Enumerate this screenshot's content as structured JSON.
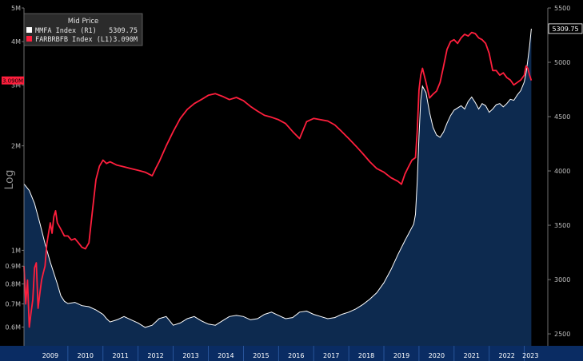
{
  "chart_data": {
    "type": "line",
    "title": "Mid Price",
    "left_axis": {
      "scale": "log",
      "label": "Log",
      "range": [
        0.53,
        5.0
      ],
      "tick_values": [
        0.6,
        0.7,
        0.8,
        0.9,
        1,
        2,
        3,
        4,
        5
      ],
      "tick_labels": [
        "0.6M",
        "0.7M",
        "0.8M",
        "0.9M",
        "1M",
        "2M",
        "3M",
        "4M",
        "5M"
      ]
    },
    "right_axis": {
      "scale": "linear",
      "range": [
        2390,
        5500
      ],
      "tick_values": [
        2500,
        3000,
        3500,
        4000,
        4500,
        5000,
        5500
      ],
      "tick_labels": [
        "2500",
        "3000",
        "3500",
        "4000",
        "4500",
        "5000",
        "5500"
      ]
    },
    "x_axis": {
      "range": [
        2008.75,
        2023.35
      ],
      "year_labels": [
        "2009",
        "2010",
        "2011",
        "2012",
        "2013",
        "2014",
        "2015",
        "2016",
        "2017",
        "2018",
        "2019",
        "2020",
        "2021",
        "2022",
        "2023"
      ]
    },
    "grid": false,
    "legend_position": "top-left",
    "series": [
      {
        "name": "MMFA Index  (R1)",
        "legend_value": "5309.75",
        "axis": "right",
        "style": "area",
        "color": "#ffffff",
        "fill": "#0d2a4f",
        "last_value_label": "5309.75",
        "points": [
          [
            2008.75,
            3880
          ],
          [
            2008.9,
            3820
          ],
          [
            2009.05,
            3700
          ],
          [
            2009.2,
            3520
          ],
          [
            2009.35,
            3330
          ],
          [
            2009.5,
            3160
          ],
          [
            2009.6,
            3060
          ],
          [
            2009.7,
            2960
          ],
          [
            2009.8,
            2850
          ],
          [
            2009.9,
            2800
          ],
          [
            2010.0,
            2780
          ],
          [
            2010.2,
            2790
          ],
          [
            2010.4,
            2760
          ],
          [
            2010.6,
            2750
          ],
          [
            2010.8,
            2720
          ],
          [
            2011.0,
            2680
          ],
          [
            2011.1,
            2640
          ],
          [
            2011.2,
            2610
          ],
          [
            2011.4,
            2630
          ],
          [
            2011.6,
            2660
          ],
          [
            2011.8,
            2630
          ],
          [
            2012.0,
            2600
          ],
          [
            2012.2,
            2560
          ],
          [
            2012.4,
            2580
          ],
          [
            2012.6,
            2640
          ],
          [
            2012.8,
            2660
          ],
          [
            2012.9,
            2620
          ],
          [
            2013.0,
            2580
          ],
          [
            2013.2,
            2600
          ],
          [
            2013.4,
            2640
          ],
          [
            2013.6,
            2660
          ],
          [
            2013.8,
            2620
          ],
          [
            2014.0,
            2590
          ],
          [
            2014.2,
            2580
          ],
          [
            2014.4,
            2620
          ],
          [
            2014.6,
            2660
          ],
          [
            2014.8,
            2670
          ],
          [
            2015.0,
            2660
          ],
          [
            2015.2,
            2630
          ],
          [
            2015.4,
            2640
          ],
          [
            2015.6,
            2680
          ],
          [
            2015.8,
            2700
          ],
          [
            2016.0,
            2670
          ],
          [
            2016.2,
            2640
          ],
          [
            2016.4,
            2650
          ],
          [
            2016.6,
            2700
          ],
          [
            2016.8,
            2710
          ],
          [
            2017.0,
            2680
          ],
          [
            2017.2,
            2660
          ],
          [
            2017.4,
            2640
          ],
          [
            2017.6,
            2650
          ],
          [
            2017.8,
            2680
          ],
          [
            2018.0,
            2700
          ],
          [
            2018.2,
            2730
          ],
          [
            2018.4,
            2770
          ],
          [
            2018.6,
            2820
          ],
          [
            2018.8,
            2880
          ],
          [
            2019.0,
            2970
          ],
          [
            2019.2,
            3090
          ],
          [
            2019.4,
            3230
          ],
          [
            2019.6,
            3360
          ],
          [
            2019.7,
            3420
          ],
          [
            2019.8,
            3480
          ],
          [
            2019.85,
            3510
          ],
          [
            2019.9,
            3600
          ],
          [
            2019.95,
            3900
          ],
          [
            2020.0,
            4320
          ],
          [
            2020.05,
            4650
          ],
          [
            2020.1,
            4780
          ],
          [
            2020.2,
            4720
          ],
          [
            2020.3,
            4540
          ],
          [
            2020.4,
            4400
          ],
          [
            2020.5,
            4330
          ],
          [
            2020.6,
            4310
          ],
          [
            2020.7,
            4360
          ],
          [
            2020.8,
            4440
          ],
          [
            2020.9,
            4510
          ],
          [
            2021.0,
            4560
          ],
          [
            2021.2,
            4600
          ],
          [
            2021.3,
            4570
          ],
          [
            2021.4,
            4640
          ],
          [
            2021.5,
            4680
          ],
          [
            2021.6,
            4630
          ],
          [
            2021.7,
            4570
          ],
          [
            2021.8,
            4620
          ],
          [
            2021.9,
            4600
          ],
          [
            2022.0,
            4540
          ],
          [
            2022.1,
            4570
          ],
          [
            2022.2,
            4610
          ],
          [
            2022.3,
            4620
          ],
          [
            2022.4,
            4590
          ],
          [
            2022.5,
            4620
          ],
          [
            2022.6,
            4660
          ],
          [
            2022.7,
            4650
          ],
          [
            2022.8,
            4700
          ],
          [
            2022.9,
            4740
          ],
          [
            2023.0,
            4820
          ],
          [
            2023.05,
            4900
          ],
          [
            2023.1,
            5020
          ],
          [
            2023.15,
            5150
          ],
          [
            2023.2,
            5309.75
          ]
        ]
      },
      {
        "name": "FARBRBFB Index  (L1)",
        "legend_value": "3.090M",
        "axis": "left",
        "style": "line",
        "color": "#ff1f3d",
        "last_value_label": "3.090M",
        "points": [
          [
            2008.75,
            0.9
          ],
          [
            2008.8,
            0.7
          ],
          [
            2008.85,
            0.82
          ],
          [
            2008.9,
            0.6
          ],
          [
            2008.95,
            0.66
          ],
          [
            2009.0,
            0.72
          ],
          [
            2009.05,
            0.89
          ],
          [
            2009.1,
            0.92
          ],
          [
            2009.15,
            0.68
          ],
          [
            2009.2,
            0.75
          ],
          [
            2009.25,
            0.82
          ],
          [
            2009.3,
            0.86
          ],
          [
            2009.35,
            0.9
          ],
          [
            2009.4,
            1.04
          ],
          [
            2009.45,
            1.12
          ],
          [
            2009.5,
            1.2
          ],
          [
            2009.55,
            1.12
          ],
          [
            2009.6,
            1.25
          ],
          [
            2009.65,
            1.3
          ],
          [
            2009.7,
            1.2
          ],
          [
            2009.8,
            1.15
          ],
          [
            2009.9,
            1.1
          ],
          [
            2010.0,
            1.1
          ],
          [
            2010.1,
            1.07
          ],
          [
            2010.2,
            1.08
          ],
          [
            2010.3,
            1.05
          ],
          [
            2010.4,
            1.02
          ],
          [
            2010.5,
            1.01
          ],
          [
            2010.6,
            1.05
          ],
          [
            2010.7,
            1.3
          ],
          [
            2010.8,
            1.6
          ],
          [
            2010.9,
            1.75
          ],
          [
            2011.0,
            1.82
          ],
          [
            2011.1,
            1.78
          ],
          [
            2011.2,
            1.8
          ],
          [
            2011.4,
            1.76
          ],
          [
            2011.6,
            1.74
          ],
          [
            2011.8,
            1.72
          ],
          [
            2012.0,
            1.7
          ],
          [
            2012.2,
            1.68
          ],
          [
            2012.4,
            1.64
          ],
          [
            2012.5,
            1.72
          ],
          [
            2012.6,
            1.8
          ],
          [
            2012.8,
            2.0
          ],
          [
            2013.0,
            2.2
          ],
          [
            2013.2,
            2.4
          ],
          [
            2013.4,
            2.55
          ],
          [
            2013.6,
            2.65
          ],
          [
            2013.8,
            2.72
          ],
          [
            2014.0,
            2.8
          ],
          [
            2014.2,
            2.83
          ],
          [
            2014.4,
            2.78
          ],
          [
            2014.6,
            2.72
          ],
          [
            2014.8,
            2.76
          ],
          [
            2015.0,
            2.7
          ],
          [
            2015.2,
            2.6
          ],
          [
            2015.4,
            2.52
          ],
          [
            2015.6,
            2.45
          ],
          [
            2015.8,
            2.42
          ],
          [
            2016.0,
            2.38
          ],
          [
            2016.2,
            2.32
          ],
          [
            2016.4,
            2.2
          ],
          [
            2016.6,
            2.1
          ],
          [
            2016.8,
            2.35
          ],
          [
            2017.0,
            2.4
          ],
          [
            2017.2,
            2.38
          ],
          [
            2017.4,
            2.36
          ],
          [
            2017.6,
            2.3
          ],
          [
            2017.8,
            2.2
          ],
          [
            2018.0,
            2.1
          ],
          [
            2018.2,
            2.0
          ],
          [
            2018.4,
            1.9
          ],
          [
            2018.6,
            1.8
          ],
          [
            2018.8,
            1.72
          ],
          [
            2019.0,
            1.68
          ],
          [
            2019.2,
            1.62
          ],
          [
            2019.4,
            1.58
          ],
          [
            2019.5,
            1.55
          ],
          [
            2019.6,
            1.66
          ],
          [
            2019.7,
            1.74
          ],
          [
            2019.8,
            1.82
          ],
          [
            2019.9,
            1.85
          ],
          [
            2019.95,
            2.2
          ],
          [
            2020.0,
            2.9
          ],
          [
            2020.05,
            3.2
          ],
          [
            2020.1,
            3.35
          ],
          [
            2020.2,
            3.05
          ],
          [
            2020.3,
            2.75
          ],
          [
            2020.4,
            2.82
          ],
          [
            2020.5,
            2.88
          ],
          [
            2020.6,
            3.05
          ],
          [
            2020.7,
            3.4
          ],
          [
            2020.8,
            3.8
          ],
          [
            2020.9,
            4.0
          ],
          [
            2021.0,
            4.05
          ],
          [
            2021.1,
            3.95
          ],
          [
            2021.2,
            4.1
          ],
          [
            2021.3,
            4.2
          ],
          [
            2021.4,
            4.15
          ],
          [
            2021.5,
            4.25
          ],
          [
            2021.6,
            4.22
          ],
          [
            2021.7,
            4.1
          ],
          [
            2021.8,
            4.05
          ],
          [
            2021.9,
            3.95
          ],
          [
            2022.0,
            3.7
          ],
          [
            2022.1,
            3.3
          ],
          [
            2022.2,
            3.3
          ],
          [
            2022.3,
            3.2
          ],
          [
            2022.4,
            3.25
          ],
          [
            2022.5,
            3.15
          ],
          [
            2022.6,
            3.1
          ],
          [
            2022.7,
            3.0
          ],
          [
            2022.8,
            3.05
          ],
          [
            2022.9,
            3.1
          ],
          [
            2023.0,
            3.2
          ],
          [
            2023.05,
            3.4
          ],
          [
            2023.1,
            3.35
          ],
          [
            2023.15,
            3.2
          ],
          [
            2023.2,
            3.09
          ]
        ]
      }
    ]
  }
}
